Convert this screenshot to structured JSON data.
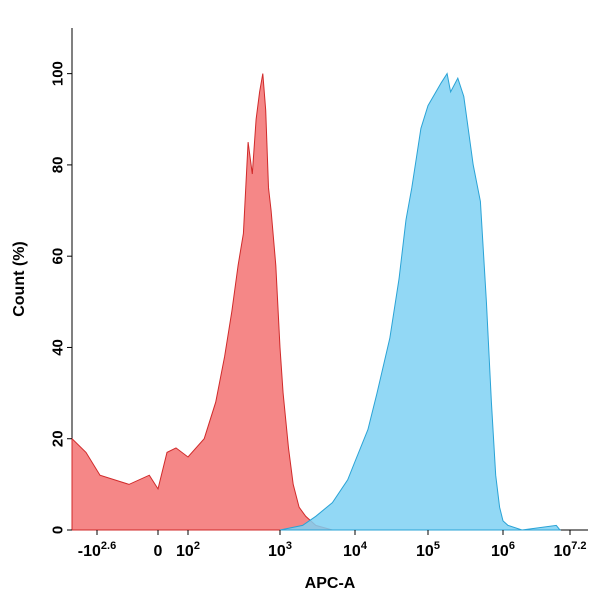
{
  "chart_data": {
    "type": "area",
    "title": "",
    "xlabel": "APC-A",
    "ylabel": "Count  (%)",
    "xscale": "biexponential",
    "x_ticks": [
      {
        "label": "-10",
        "sup": "2.6"
      },
      {
        "label": "0",
        "sup": ""
      },
      {
        "label": "10",
        "sup": "2"
      },
      {
        "label": "10",
        "sup": "3"
      },
      {
        "label": "10",
        "sup": "4"
      },
      {
        "label": "10",
        "sup": "5"
      },
      {
        "label": "10",
        "sup": "6"
      },
      {
        "label": "10",
        "sup": "7.2"
      }
    ],
    "y_ticks": [
      "0",
      "20",
      "40",
      "60",
      "80",
      "100"
    ],
    "ylim": [
      0,
      110
    ],
    "grid": false,
    "series": [
      {
        "color": "#f47a7a",
        "stroke": "#d02a2a",
        "points": [
          [
            -400,
            20
          ],
          [
            -300,
            17
          ],
          [
            -200,
            12
          ],
          [
            -100,
            10
          ],
          [
            -30,
            12
          ],
          [
            0,
            9
          ],
          [
            30,
            17
          ],
          [
            60,
            18
          ],
          [
            100,
            16
          ],
          [
            150,
            20
          ],
          [
            200,
            28
          ],
          [
            250,
            38
          ],
          [
            300,
            48
          ],
          [
            350,
            58
          ],
          [
            400,
            65
          ],
          [
            450,
            85
          ],
          [
            500,
            78
          ],
          [
            550,
            90
          ],
          [
            600,
            96
          ],
          [
            650,
            100
          ],
          [
            700,
            92
          ],
          [
            750,
            75
          ],
          [
            800,
            70
          ],
          [
            900,
            58
          ],
          [
            1000,
            40
          ],
          [
            1100,
            30
          ],
          [
            1300,
            18
          ],
          [
            1500,
            10
          ],
          [
            1800,
            5
          ],
          [
            2200,
            3
          ],
          [
            3000,
            1
          ],
          [
            5000,
            0
          ]
        ]
      },
      {
        "color": "#7fd1f3",
        "stroke": "#2aa3d6",
        "points": [
          [
            1000,
            0
          ],
          [
            2000,
            1
          ],
          [
            3000,
            3
          ],
          [
            5000,
            6
          ],
          [
            8000,
            11
          ],
          [
            10000,
            15
          ],
          [
            15000,
            22
          ],
          [
            20000,
            30
          ],
          [
            30000,
            42
          ],
          [
            40000,
            55
          ],
          [
            50000,
            68
          ],
          [
            60000,
            75
          ],
          [
            70000,
            82
          ],
          [
            80000,
            88
          ],
          [
            100000,
            93
          ],
          [
            150000,
            98
          ],
          [
            180000,
            100
          ],
          [
            200000,
            96
          ],
          [
            250000,
            99
          ],
          [
            300000,
            95
          ],
          [
            400000,
            80
          ],
          [
            500000,
            72
          ],
          [
            600000,
            50
          ],
          [
            700000,
            28
          ],
          [
            800000,
            12
          ],
          [
            900000,
            5
          ],
          [
            1000000,
            2
          ],
          [
            1200000,
            1
          ],
          [
            2000000,
            0
          ],
          [
            7000000,
            1
          ],
          [
            8000000,
            0
          ]
        ]
      }
    ]
  }
}
